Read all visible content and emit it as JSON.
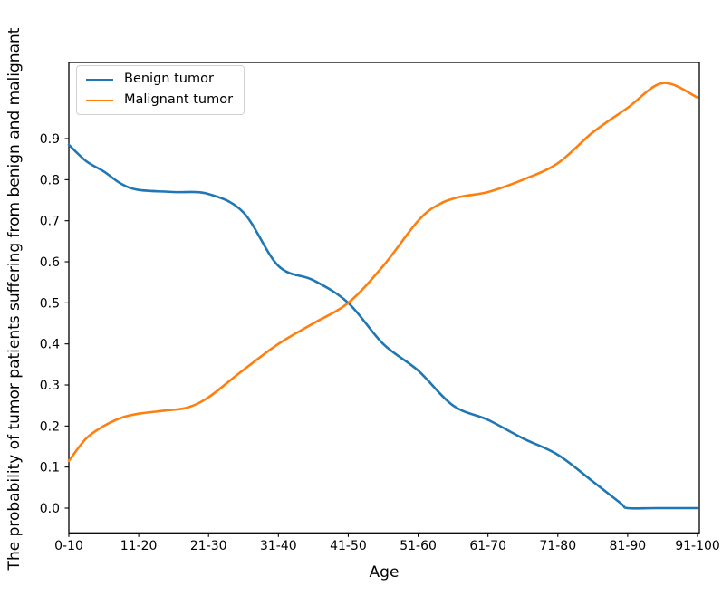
{
  "figure": {
    "background": "#ffffff",
    "frame_color": "#000000",
    "tick_label_color": "#000000"
  },
  "chart_data": {
    "type": "line",
    "title": "",
    "xlabel": "Age",
    "ylabel": "The probability of tumor patients suffering from benign and malignant",
    "categories": [
      "0-10",
      "11-20",
      "21-30",
      "31-40",
      "41-50",
      "51-60",
      "61-70",
      "71-80",
      "81-90",
      "91-100"
    ],
    "ytick_labels": [
      "0.0",
      "0.1",
      "0.2",
      "0.3",
      "0.4",
      "0.5",
      "0.6",
      "0.7",
      "0.8",
      "0.9"
    ],
    "ytick_values": [
      0.0,
      0.1,
      0.2,
      0.3,
      0.4,
      0.5,
      0.6,
      0.7,
      0.8,
      0.9
    ],
    "ylim": [
      -0.06,
      1.09
    ],
    "grid": false,
    "legend_position": "upper left",
    "series": [
      {
        "name": "Benign tumor",
        "color": "#1f77b4",
        "values": [
          0.89,
          0.77,
          0.77,
          0.59,
          0.5,
          0.33,
          0.22,
          0.13,
          0.0,
          0.0
        ],
        "smooth_samples": [
          [
            0,
            0.885
          ],
          [
            0.25,
            0.845
          ],
          [
            0.5,
            0.82
          ],
          [
            0.75,
            0.79
          ],
          [
            1,
            0.775
          ],
          [
            1.5,
            0.77
          ],
          [
            2,
            0.765
          ],
          [
            2.5,
            0.72
          ],
          [
            3,
            0.59
          ],
          [
            3.5,
            0.555
          ],
          [
            4,
            0.5
          ],
          [
            4.5,
            0.4
          ],
          [
            5,
            0.335
          ],
          [
            5.5,
            0.25
          ],
          [
            6,
            0.215
          ],
          [
            6.5,
            0.17
          ],
          [
            7,
            0.13
          ],
          [
            7.5,
            0.065
          ],
          [
            7.9,
            0.012
          ],
          [
            8,
            0.0
          ],
          [
            8.4,
            0.0
          ],
          [
            9,
            0.0
          ]
        ]
      },
      {
        "name": "Malignant tumor",
        "color": "#ff7f0e",
        "values": [
          0.12,
          0.23,
          0.27,
          0.4,
          0.5,
          0.7,
          0.77,
          0.84,
          0.97,
          1.0
        ],
        "smooth_samples": [
          [
            0,
            0.115
          ],
          [
            0.25,
            0.17
          ],
          [
            0.5,
            0.2
          ],
          [
            0.75,
            0.22
          ],
          [
            1,
            0.23
          ],
          [
            1.4,
            0.238
          ],
          [
            1.7,
            0.245
          ],
          [
            2,
            0.27
          ],
          [
            2.45,
            0.33
          ],
          [
            3,
            0.4
          ],
          [
            3.5,
            0.45
          ],
          [
            4,
            0.5
          ],
          [
            4.5,
            0.59
          ],
          [
            5,
            0.7
          ],
          [
            5.3,
            0.74
          ],
          [
            5.6,
            0.758
          ],
          [
            6,
            0.77
          ],
          [
            6.5,
            0.8
          ],
          [
            7,
            0.84
          ],
          [
            7.5,
            0.915
          ],
          [
            8,
            0.975
          ],
          [
            8.5,
            1.035
          ],
          [
            9,
            1.0
          ]
        ]
      }
    ]
  }
}
